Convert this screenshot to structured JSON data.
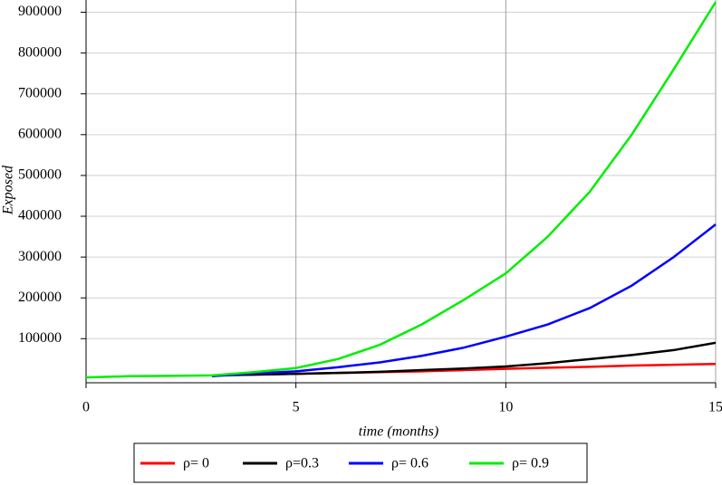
{
  "chart_data": {
    "type": "line",
    "x_label": "time (months)",
    "y_label": "Exposed",
    "x": [
      0,
      1,
      2,
      3,
      4,
      5,
      6,
      7,
      8,
      9,
      10,
      11,
      12,
      13,
      14,
      15
    ],
    "series": [
      {
        "name": "ρ= 0",
        "color": "#ff0000",
        "values": [
          null,
          null,
          null,
          10000,
          12000,
          14000,
          16000,
          18000,
          20000,
          23000,
          26000,
          29000,
          31000,
          34000,
          36000,
          38000
        ]
      },
      {
        "name": "ρ=0.3",
        "color": "#000000",
        "values": [
          null,
          null,
          null,
          10000,
          12000,
          14000,
          16000,
          19000,
          23000,
          27000,
          32000,
          40000,
          50000,
          60000,
          72000,
          90000
        ]
      },
      {
        "name": "ρ= 0.6",
        "color": "#0000ff",
        "values": [
          null,
          null,
          null,
          8000,
          15000,
          20000,
          30000,
          42000,
          58000,
          78000,
          105000,
          135000,
          175000,
          230000,
          300000,
          380000
        ]
      },
      {
        "name": "ρ= 0.9",
        "color": "#00ee00",
        "values": [
          5000,
          8000,
          9000,
          10000,
          18000,
          28000,
          50000,
          85000,
          135000,
          195000,
          260000,
          350000,
          460000,
          600000,
          760000,
          925000
        ]
      }
    ],
    "xlim": [
      0,
      15
    ],
    "xticks": [
      0,
      5,
      10,
      15
    ],
    "ylim": [
      -8000,
      930000
    ],
    "yticks": [
      100000,
      200000,
      300000,
      400000,
      500000,
      600000,
      700000,
      800000,
      900000
    ],
    "grid": true,
    "legend": "bottom"
  }
}
